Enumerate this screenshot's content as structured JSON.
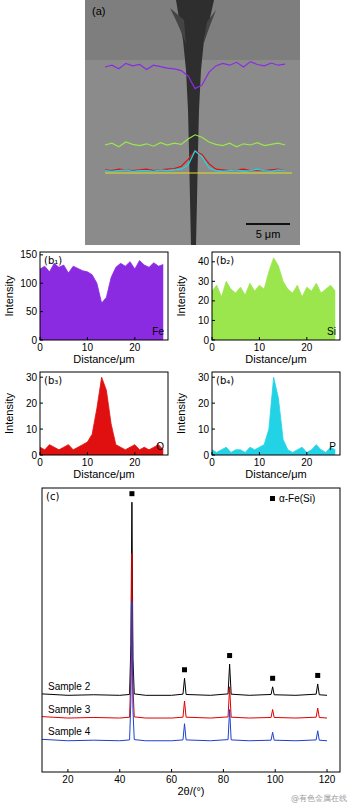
{
  "image_panel": {
    "label": "(a)",
    "scale_bar": "5 μm"
  },
  "watermark": "@有色金属在线",
  "chart_data": [
    {
      "type": "area",
      "panel_label": "(b₁)",
      "x_label": "Distance/μm",
      "y_label": "Intensity",
      "x": [
        0,
        1,
        2,
        3,
        4,
        5,
        6,
        7,
        8,
        9,
        10,
        11,
        12,
        13,
        14,
        15,
        16,
        17,
        18,
        19,
        20,
        21,
        22,
        23,
        24,
        25,
        26
      ],
      "xlim": [
        0,
        27
      ],
      "xticks": [
        0,
        10,
        20
      ],
      "ylim": [
        0,
        155
      ],
      "yticks": [
        0,
        50,
        100,
        150
      ],
      "series": [
        {
          "name": "Fe",
          "color": "#8a2be2",
          "values": [
            125,
            130,
            120,
            135,
            128,
            132,
            118,
            130,
            126,
            122,
            120,
            115,
            100,
            65,
            75,
            110,
            128,
            135,
            130,
            138,
            125,
            140,
            132,
            128,
            136,
            130,
            133
          ]
        }
      ]
    },
    {
      "type": "area",
      "panel_label": "(b₂)",
      "x_label": "Distance/μm",
      "y_label": "Intensity",
      "x": [
        0,
        1,
        2,
        3,
        4,
        5,
        6,
        7,
        8,
        9,
        10,
        11,
        12,
        13,
        14,
        15,
        16,
        17,
        18,
        19,
        20,
        21,
        22,
        23,
        24,
        25,
        26
      ],
      "xlim": [
        0,
        27
      ],
      "xticks": [
        0,
        10,
        20
      ],
      "ylim": [
        0,
        45
      ],
      "yticks": [
        0,
        10,
        20,
        30,
        40
      ],
      "series": [
        {
          "name": "Si",
          "color": "#9ae64c",
          "values": [
            25,
            28,
            22,
            30,
            26,
            24,
            27,
            23,
            29,
            25,
            28,
            26,
            35,
            42,
            38,
            30,
            26,
            24,
            28,
            22,
            27,
            25,
            29,
            24,
            26,
            28,
            25
          ]
        }
      ]
    },
    {
      "type": "area",
      "panel_label": "(b₃)",
      "x_label": "Distance/μm",
      "y_label": "Intensity",
      "x": [
        0,
        1,
        2,
        3,
        4,
        5,
        6,
        7,
        8,
        9,
        10,
        11,
        12,
        13,
        14,
        15,
        16,
        17,
        18,
        19,
        20,
        21,
        22,
        23,
        24,
        25,
        26
      ],
      "xlim": [
        0,
        27
      ],
      "xticks": [
        0,
        10,
        20
      ],
      "ylim": [
        0,
        32
      ],
      "yticks": [
        0,
        10,
        20,
        30
      ],
      "series": [
        {
          "name": "O",
          "color": "#e01010",
          "values": [
            3,
            2,
            4,
            3,
            2,
            3,
            4,
            2,
            3,
            4,
            5,
            8,
            18,
            30,
            25,
            12,
            4,
            3,
            2,
            3,
            4,
            2,
            3,
            2,
            3,
            4,
            2
          ]
        }
      ]
    },
    {
      "type": "area",
      "panel_label": "(b₄)",
      "x_label": "Distance/μm",
      "y_label": "Intensity",
      "x": [
        0,
        1,
        2,
        3,
        4,
        5,
        6,
        7,
        8,
        9,
        10,
        11,
        12,
        13,
        14,
        15,
        16,
        17,
        18,
        19,
        20,
        21,
        22,
        23,
        24,
        25,
        26
      ],
      "xlim": [
        0,
        27
      ],
      "xticks": [
        0,
        10,
        20
      ],
      "ylim": [
        0,
        32
      ],
      "yticks": [
        0,
        10,
        20,
        30
      ],
      "series": [
        {
          "name": "P",
          "color": "#22d3e6",
          "values": [
            2,
            1,
            2,
            3,
            1,
            2,
            2,
            1,
            3,
            2,
            3,
            4,
            10,
            30,
            22,
            6,
            2,
            1,
            2,
            3,
            1,
            2,
            4,
            2,
            1,
            3,
            2
          ]
        }
      ]
    },
    {
      "type": "line",
      "panel_label": "(c)",
      "x_label": "2θ/(°)",
      "tick_labels": "x",
      "legend": "upper right",
      "x": [
        10,
        20,
        30,
        40,
        43.8,
        44.3,
        44.7,
        45.1,
        45.6,
        50,
        60,
        64.4,
        65.0,
        65.6,
        75,
        81.8,
        82.4,
        83.0,
        90,
        98.4,
        99.0,
        99.6,
        108,
        115.8,
        116.4,
        117.0,
        120
      ],
      "xlim": [
        10,
        125
      ],
      "xticks": [
        20,
        40,
        60,
        80,
        100,
        120
      ],
      "ylim": [
        0,
        100
      ],
      "series": [
        {
          "name": "Sample 2",
          "color": "#000000",
          "values": [
            27.5,
            27,
            27.2,
            27,
            27.3,
            45,
            95,
            40,
            27.5,
            27,
            27,
            27.4,
            33,
            27.3,
            27,
            27.5,
            38,
            27.4,
            27,
            27.3,
            30,
            27.2,
            27,
            27.4,
            31,
            27.2,
            27
          ]
        },
        {
          "name": "Sample 3",
          "color": "#e00000",
          "values": [
            19.5,
            19,
            19.2,
            19,
            19.3,
            35,
            77,
            30,
            19.4,
            19,
            19,
            19.3,
            25,
            19.3,
            19,
            19.4,
            30,
            19.3,
            19,
            19.2,
            22,
            19.2,
            19,
            19.3,
            22.5,
            19.2,
            19
          ]
        },
        {
          "name": "Sample 4",
          "color": "#1f3fd0",
          "values": [
            11.5,
            11,
            11.2,
            11,
            11.3,
            25,
            60,
            22,
            11.4,
            11,
            11,
            11.3,
            17,
            11.3,
            11,
            11.4,
            22,
            11.3,
            11,
            11.2,
            14,
            11.2,
            11,
            11.3,
            14.5,
            11.2,
            11
          ]
        }
      ],
      "markers": {
        "label": "α-Fe(Si)",
        "color": "#000000",
        "marker": "square",
        "x": [
          44.7,
          65.0,
          82.4,
          99.0,
          116.4
        ],
        "y": [
          98,
          36,
          41,
          33,
          34
        ]
      }
    }
  ]
}
